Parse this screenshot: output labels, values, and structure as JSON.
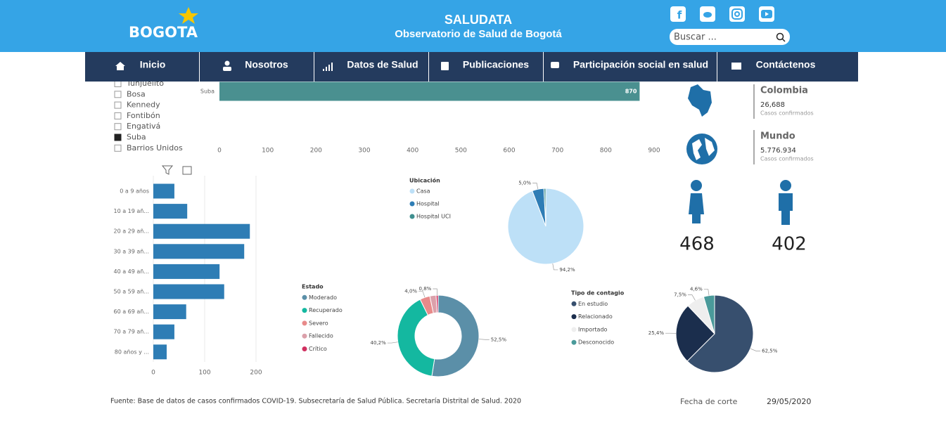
{
  "header": {
    "logo": "BOGOTA",
    "title": "SALUDATA",
    "subtitle": "Observatorio de Salud de Bogotá",
    "search_placeholder": "Buscar ..."
  },
  "nav": [
    "Inicio",
    "Nosotros",
    "Datos de Salud",
    "Publicaciones",
    "Participación social en salud",
    "Contáctenos"
  ],
  "localities": {
    "items": [
      "Tunjuelito",
      "Bosa",
      "Kennedy",
      "Fontibón",
      "Engativá",
      "Suba",
      "Barrios Unidos"
    ],
    "selected": "Suba"
  },
  "chart_data": [
    {
      "type": "bar",
      "orientation": "horizontal",
      "categories": [
        "Suba"
      ],
      "values": [
        870
      ],
      "color": "#4a9090",
      "xlim": [
        0,
        900
      ],
      "xticks": [
        0,
        100,
        200,
        300,
        400,
        500,
        600,
        700,
        800,
        900
      ]
    },
    {
      "type": "bar",
      "orientation": "horizontal",
      "categories": [
        "0 a 9 años",
        "10 a 19 añ...",
        "20 a 29 añ...",
        "30 a 39 añ...",
        "40 a 49 añ...",
        "50 a 59 añ...",
        "60 a 69 añ...",
        "70 a 79 añ...",
        "80 años y ..."
      ],
      "values": [
        41,
        66,
        188,
        177,
        129,
        138,
        64,
        41,
        26
      ],
      "color": "#2e7db5",
      "xlim": [
        0,
        200
      ],
      "xticks": [
        0,
        100,
        200
      ],
      "grid": true
    },
    {
      "type": "pie",
      "title": "Ubicación",
      "categories": [
        "Casa",
        "Hospital",
        "Hospital UCI"
      ],
      "values": [
        94.2,
        5.0,
        0.8
      ],
      "value_labels": [
        "94,2%",
        "5,0%",
        null
      ],
      "colors": [
        "#bde0f7",
        "#2e7db5",
        "#3f8f8f"
      ]
    },
    {
      "type": "donut",
      "title": "Estado",
      "categories": [
        "Moderado",
        "Recuperado",
        "Severo",
        "Fallecido",
        "Crítico"
      ],
      "values": [
        52.5,
        40.2,
        4.0,
        2.5,
        0.8
      ],
      "value_labels": [
        "52,5%",
        "40,2%",
        "4,0%",
        null,
        "0,8%"
      ],
      "colors": [
        "#5b8fa8",
        "#14b8a0",
        "#e88a8a",
        "#dba0aa",
        "#d03060"
      ]
    },
    {
      "type": "pie",
      "title": "Tipo de contagio",
      "categories": [
        "En estudio",
        "Relacionado",
        "Importado",
        "Desconocido"
      ],
      "values": [
        62.5,
        25.4,
        7.5,
        4.6
      ],
      "value_labels": [
        "62,5%",
        "25,4%",
        "7,5%",
        "4,6%"
      ],
      "colors": [
        "#374f6e",
        "#1b2e4d",
        "#eeeeee",
        "#4a9a9a"
      ]
    }
  ],
  "cases": [
    {
      "name": "Colombia",
      "value": "26,688",
      "label": "Casos confirmados"
    },
    {
      "name": "Mundo",
      "value": "5.776.934",
      "label": "Casos confirmados"
    }
  ],
  "gender": {
    "female": 468,
    "male": 402
  },
  "footer": {
    "source": "Fuente: Base de datos de casos confirmados COVID-19. Subsecretaría de Salud Pública. Secretaría Distrital de Salud. 2020",
    "cutoff_label": "Fecha de corte",
    "cutoff_date": "29/05/2020"
  }
}
